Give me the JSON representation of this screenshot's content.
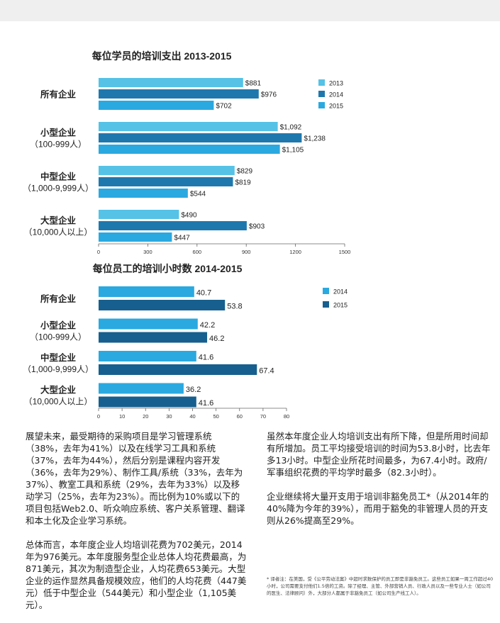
{
  "chart_data": [
    {
      "type": "bar",
      "orientation": "horizontal",
      "title": "每位学员的培训支出 2013-2015",
      "categories": [
        "所有企业",
        "小型企业",
        "中型企业",
        "大型企业"
      ],
      "category_sublabels": [
        "",
        "（100-999人）",
        "（1,000-9,999人）",
        "（10,000人以上）"
      ],
      "series": [
        {
          "name": "2013",
          "color": "#55c2e6",
          "values": [
            881,
            1092,
            829,
            490
          ],
          "labels": [
            "$881",
            "$1,092",
            "$829",
            "$490"
          ]
        },
        {
          "name": "2014",
          "color": "#1f78ad",
          "values": [
            976,
            1238,
            819,
            903
          ],
          "labels": [
            "$976",
            "$1,238",
            "$819",
            "$903"
          ]
        },
        {
          "name": "2015",
          "color": "#2aa9e0",
          "values": [
            702,
            1105,
            544,
            447
          ],
          "labels": [
            "$702",
            "$1,105",
            "$544",
            "$447"
          ]
        }
      ],
      "xlim": [
        0,
        1500
      ],
      "xticks": [
        0,
        300,
        600,
        900,
        1200,
        1500
      ],
      "legend": "top-right",
      "grid": false
    },
    {
      "type": "bar",
      "orientation": "horizontal",
      "title": "每位员工的培训小时数 2014-2015",
      "categories": [
        "所有企业",
        "小型企业",
        "中型企业",
        "大型企业"
      ],
      "category_sublabels": [
        "",
        "（100-999人）",
        "（1,000-9,999人）",
        "（10,000人以上）"
      ],
      "series": [
        {
          "name": "2014",
          "color": "#2aa9e0",
          "values": [
            40.7,
            42.2,
            41.6,
            36.2
          ],
          "labels": [
            "40.7",
            "42.2",
            "41.6",
            "36.2"
          ]
        },
        {
          "name": "2015",
          "color": "#175f8e",
          "values": [
            53.8,
            46.2,
            67.4,
            41.6
          ],
          "labels": [
            "53.8",
            "46.2",
            "67.4",
            "41.6"
          ]
        }
      ],
      "xlim": [
        0,
        80
      ],
      "xticks": [
        0,
        10,
        20,
        30,
        40,
        50,
        60,
        70,
        80
      ],
      "legend": "top-right",
      "grid": false
    }
  ],
  "text": {
    "left": [
      "展望未来，最受期待的采购项目是学习管理系统（38%，去年为41%）以及在线学习工具和系统（37%，去年为44%），然后分别是课程内容开发（36%，去年为29%）、制作工具/系统（33%，去年为37%）、教室工具和系统（29%，去年为33%）以及移动学习（25%，去年为23%）。而比例为10%或以下的项目包括Web2.0、听众响应系统、客户关系管理、翻译和本土化及企业学习系统。",
      "总体而言，本年度企业人均培训花费为702美元，2014年为976美元。本年度服务型企业总体人均花费最高，为871美元，其次为制造型企业，人均花费653美元。大型企业的运作显然具备规模效应，他们的人均花费（447美元）低于中型企业（544美元）和小型企业（1,105美元）。"
    ],
    "right": [
      "虽然本年度企业人均培训支出有所下降，但是所用时间却有所增加。员工平均接受培训的时间为53.8小时，比去年多13小时。中型企业所花时间最多，为67.4小时。政府/军事组织花费的平均学时最多（82.3小时）。",
      "企业继续将大量开支用于培训非豁免员工*（从2014年的40%降为今年的39%），而用于豁免的非管理人员的开支则从26%提高至29%。"
    ],
    "footnote": "* 译者注：在美国，受《公平劳动法案》中超时求数保护的员工即是非豁免员工。这些员工如果一周工作超过40小时，公司需要支付他们1.5倍的工资。除了经理、主管、外部营销人员、行政人员以及一些专业人士（如公司的医生、法律顾问）外，大部分人都属于非豁免员工（如公司生产线工人）。"
  }
}
